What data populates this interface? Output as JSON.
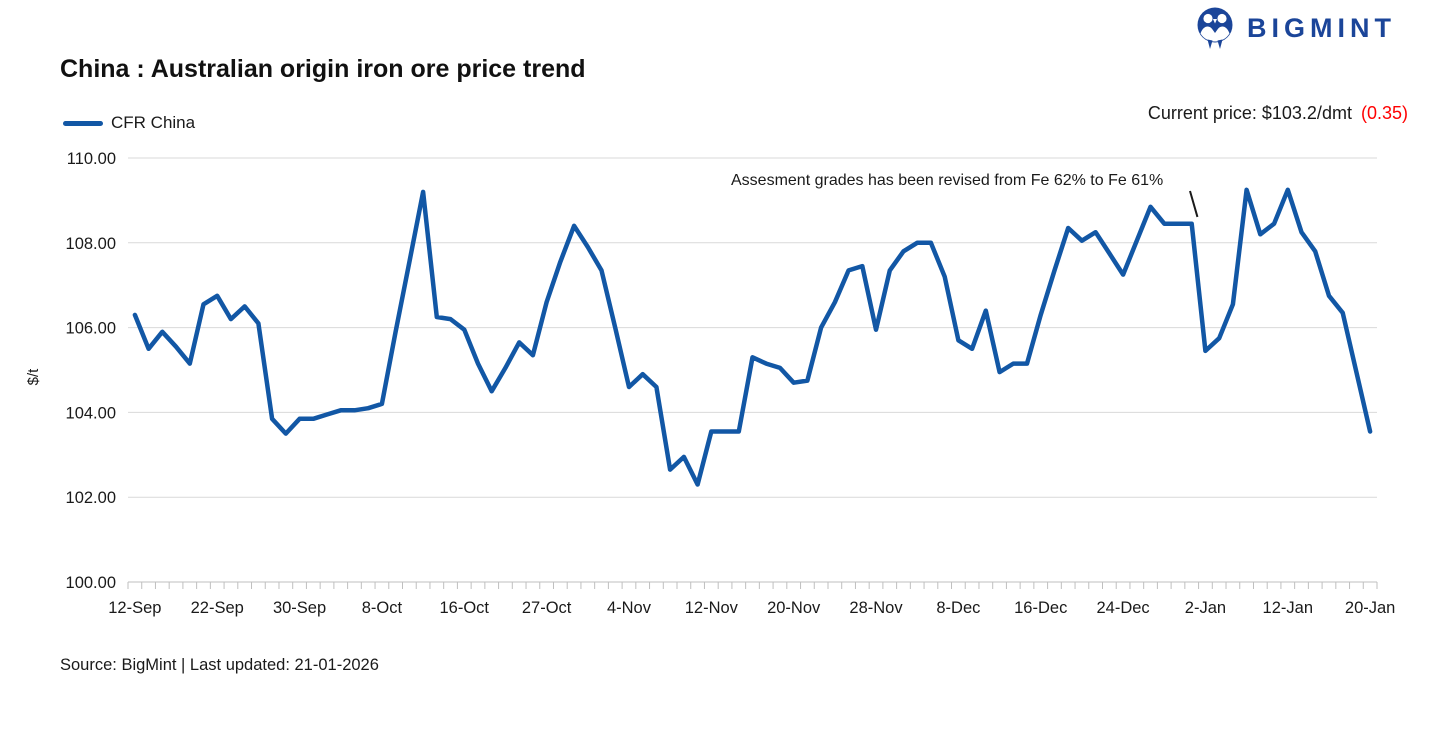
{
  "header": {
    "title": "China : Australian origin iron ore price trend",
    "logo_text": "BIGMINT",
    "current_price_label": "Current price: $103.2/dmt",
    "current_price_change": "(0.35)"
  },
  "legend": {
    "series_label": "CFR China"
  },
  "annotation": {
    "text": "Assesment grades has been revised from Fe 62% to Fe 61%"
  },
  "footer": {
    "source_text": "Source: BigMint | Last updated: 21-01-2026"
  },
  "colors": {
    "brand": "#1B4599",
    "line": "#1257A5",
    "negative": "#FF0000",
    "grid": "#D9D9D9",
    "axis": "#BFBFBF",
    "text": "#1A1A1A"
  },
  "chart_data": {
    "type": "line",
    "title": "China : Australian origin iron ore price trend",
    "xlabel": "",
    "ylabel": "$/t",
    "ylim": [
      100,
      110
    ],
    "ytick_step": 2,
    "yticks": [
      "100.00",
      "102.00",
      "104.00",
      "106.00",
      "108.00",
      "110.00"
    ],
    "grid": "horizontal",
    "legend_position": "top-left",
    "label_every": 6,
    "x_tick_labels": [
      "12-Sep",
      "22-Sep",
      "30-Sep",
      "8-Oct",
      "16-Oct",
      "27-Oct",
      "4-Nov",
      "12-Nov",
      "20-Nov",
      "28-Nov",
      "8-Dec",
      "16-Dec",
      "24-Dec",
      "2-Jan",
      "12-Jan",
      "20-Jan"
    ],
    "series": [
      {
        "name": "CFR China",
        "color": "#1257A5",
        "dates": [
          "12-Sep",
          "15-Sep",
          "16-Sep",
          "17-Sep",
          "18-Sep",
          "19-Sep",
          "22-Sep",
          "23-Sep",
          "24-Sep",
          "25-Sep",
          "26-Sep",
          "29-Sep",
          "30-Sep",
          "1-Oct",
          "2-Oct",
          "3-Oct",
          "6-Oct",
          "7-Oct",
          "8-Oct",
          "9-Oct",
          "10-Oct",
          "13-Oct",
          "14-Oct",
          "15-Oct",
          "16-Oct",
          "20-Oct",
          "21-Oct",
          "22-Oct",
          "23-Oct",
          "24-Oct",
          "27-Oct",
          "28-Oct",
          "29-Oct",
          "30-Oct",
          "31-Oct",
          "3-Nov",
          "4-Nov",
          "5-Nov",
          "6-Nov",
          "7-Nov",
          "10-Nov",
          "11-Nov",
          "12-Nov",
          "13-Nov",
          "14-Nov",
          "17-Nov",
          "18-Nov",
          "19-Nov",
          "20-Nov",
          "21-Nov",
          "24-Nov",
          "25-Nov",
          "26-Nov",
          "27-Nov",
          "28-Nov",
          "1-Dec",
          "2-Dec",
          "3-Dec",
          "4-Dec",
          "5-Dec",
          "8-Dec",
          "9-Dec",
          "10-Dec",
          "11-Dec",
          "12-Dec",
          "15-Dec",
          "16-Dec",
          "17-Dec",
          "18-Dec",
          "19-Dec",
          "22-Dec",
          "23-Dec",
          "24-Dec",
          "26-Dec",
          "29-Dec",
          "30-Dec",
          "31-Dec",
          "1-Jan",
          "2-Jan",
          "5-Jan",
          "6-Jan",
          "7-Jan",
          "8-Jan",
          "9-Jan",
          "12-Jan",
          "13-Jan",
          "14-Jan",
          "15-Jan",
          "16-Jan",
          "19-Jan",
          "20-Jan"
        ],
        "values": [
          106.3,
          105.5,
          105.9,
          105.55,
          105.15,
          106.55,
          106.75,
          106.2,
          106.5,
          106.1,
          103.85,
          103.5,
          103.85,
          103.85,
          103.95,
          104.05,
          104.05,
          104.1,
          104.2,
          105.9,
          107.55,
          109.2,
          106.25,
          106.2,
          105.95,
          105.15,
          104.5,
          105.05,
          105.65,
          105.35,
          106.6,
          107.55,
          108.4,
          107.9,
          107.35,
          106.0,
          104.6,
          104.9,
          104.6,
          102.65,
          102.95,
          102.3,
          103.55,
          103.55,
          103.55,
          105.3,
          105.15,
          105.05,
          104.7,
          104.75,
          106.0,
          106.6,
          107.35,
          107.45,
          105.95,
          107.35,
          107.8,
          108.0,
          108.0,
          107.2,
          105.7,
          105.5,
          106.4,
          104.95,
          105.15,
          105.15,
          106.3,
          107.35,
          108.35,
          108.05,
          108.25,
          107.75,
          107.25,
          108.05,
          108.85,
          108.45,
          108.45,
          108.45,
          105.45,
          105.75,
          106.55,
          109.25,
          108.2,
          108.45,
          109.25,
          108.25,
          107.8,
          106.75,
          106.35,
          104.95,
          103.55
        ]
      }
    ],
    "annotation": {
      "text": "Assesment grades has been revised from Fe 62% to Fe 61%",
      "points_to_date": "31-Dec",
      "points_to_value": 108.45
    }
  }
}
